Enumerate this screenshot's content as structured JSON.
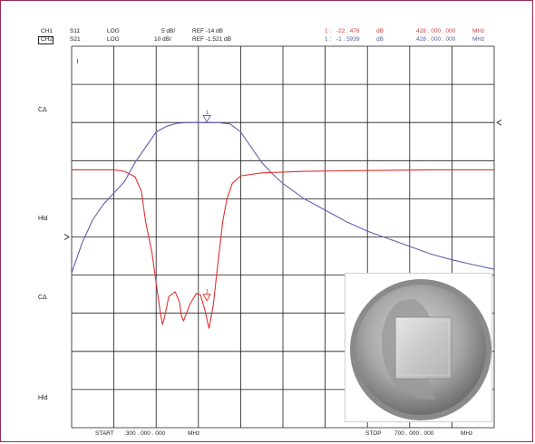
{
  "header": {
    "ch1": {
      "label": "CH1",
      "param": "S11",
      "format": "LOG",
      "scale": "5 dB/",
      "ref": "REF -14 dB"
    },
    "ch2": {
      "label": "CH2",
      "param": "S21",
      "format": "LOG",
      "scale": "10 dB/",
      "ref": "REF -1.521 dB"
    },
    "marker_ch1": {
      "id": "1 :",
      "value": "-22 . 476",
      "unit": "dB",
      "freq": "428 . 000 . 000",
      "freq_unit": "MHz"
    },
    "marker_ch2": {
      "id": "1 :",
      "value": "-1 . 5939",
      "unit": "dB",
      "freq": "428 . 000 . 000",
      "freq_unit": "MHz"
    }
  },
  "side_labels": [
    "CΔ",
    "Hld",
    "CΔ",
    "Hld"
  ],
  "footer": {
    "start_label": "START",
    "start_value": ".300 . 000 . 000",
    "start_unit": "MHz",
    "stop_label": "STOP",
    "stop_value": "700 . 000 . 000",
    "stop_unit": "MHz"
  },
  "plot_labels": {
    "tl_glyph": "≀",
    "marker_text": "1"
  },
  "colors": {
    "frame": "#9a2a52",
    "s11": "#e03030",
    "s21": "#6060b0",
    "grid": "#1a1a1a"
  },
  "chart_data": {
    "type": "line",
    "x_range": [
      300,
      700
    ],
    "grid": true,
    "divisions": {
      "x": 10,
      "y": 10
    },
    "series": [
      {
        "name": "S11",
        "ref_division": 5,
        "points": [
          [
            300,
            -5.2
          ],
          [
            340,
            -5.2
          ],
          [
            350,
            -5.4
          ],
          [
            360,
            -6.1
          ],
          [
            366,
            -8
          ],
          [
            370,
            -12
          ],
          [
            376,
            -16
          ],
          [
            384,
            -24
          ],
          [
            386,
            -25.5
          ],
          [
            388,
            -24.5
          ],
          [
            392,
            -21.8
          ],
          [
            398,
            -21.2
          ],
          [
            402,
            -22.5
          ],
          [
            404,
            -24.4
          ],
          [
            406,
            -25
          ],
          [
            412,
            -22.8
          ],
          [
            418,
            -21.4
          ],
          [
            422,
            -21.6
          ],
          [
            426,
            -23.5
          ],
          [
            430,
            -26
          ],
          [
            434,
            -23
          ],
          [
            438,
            -18
          ],
          [
            443,
            -12
          ],
          [
            447,
            -9
          ],
          [
            452,
            -7
          ],
          [
            460,
            -6
          ],
          [
            480,
            -5.6
          ],
          [
            520,
            -5.4
          ],
          [
            580,
            -5.3
          ],
          [
            640,
            -5.2
          ],
          [
            700,
            -5.2
          ]
        ]
      },
      {
        "name": "S21",
        "ref_division": 8,
        "points": [
          [
            300,
            -41
          ],
          [
            310,
            -33
          ],
          [
            320,
            -27
          ],
          [
            330,
            -23
          ],
          [
            340,
            -20
          ],
          [
            350,
            -17
          ],
          [
            360,
            -12
          ],
          [
            370,
            -8
          ],
          [
            380,
            -4
          ],
          [
            390,
            -2.5
          ],
          [
            400,
            -1.7
          ],
          [
            410,
            -1.55
          ],
          [
            420,
            -1.52
          ],
          [
            428,
            -1.59
          ],
          [
            440,
            -1.6
          ],
          [
            450,
            -1.9
          ],
          [
            460,
            -4
          ],
          [
            470,
            -8
          ],
          [
            480,
            -12
          ],
          [
            490,
            -15
          ],
          [
            500,
            -17.5
          ],
          [
            520,
            -21.5
          ],
          [
            540,
            -24.5
          ],
          [
            560,
            -27.5
          ],
          [
            580,
            -30
          ],
          [
            600,
            -32
          ],
          [
            620,
            -34
          ],
          [
            640,
            -36
          ],
          [
            660,
            -37.5
          ],
          [
            680,
            -38.8
          ],
          [
            700,
            -40
          ]
        ]
      }
    ],
    "marker": {
      "x": 428,
      "s11": -22.476,
      "s21": -1.5939
    }
  }
}
